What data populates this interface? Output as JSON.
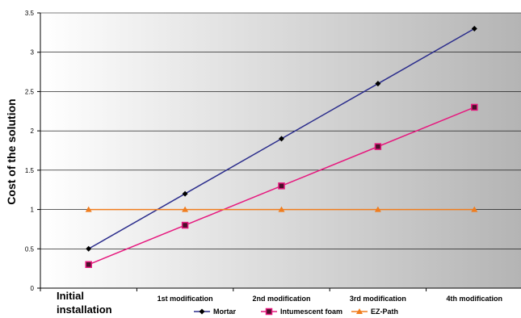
{
  "chart_data": {
    "type": "line",
    "categories": [
      "Initial installation",
      "1st modification",
      "2nd modification",
      "3rd modification",
      "4th modification"
    ],
    "ylabel": "Cost of the solution",
    "ylim": [
      0,
      3.5
    ],
    "yticks": [
      "0",
      "0.5",
      "1",
      "1.5",
      "2",
      "2.5",
      "3",
      "3.5"
    ],
    "grid": true,
    "legend_position": "bottom",
    "series": [
      {
        "name": "Mortar",
        "values": [
          0.5,
          1.2,
          1.9,
          2.6,
          3.3
        ],
        "color": "#2b2d8c",
        "marker": "diamond"
      },
      {
        "name": "Intumescent foam",
        "values": [
          0.3,
          0.8,
          1.3,
          1.8,
          2.3
        ],
        "color": "#e6197e",
        "marker": "square"
      },
      {
        "name": "EZ-Path",
        "values": [
          1,
          1,
          1,
          1,
          1
        ],
        "color": "#f07d1e",
        "marker": "triangle"
      }
    ]
  }
}
